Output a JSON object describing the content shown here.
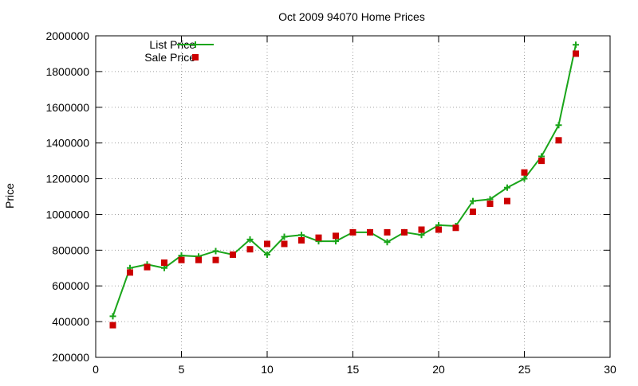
{
  "chart_data": {
    "type": "scatter",
    "title": "Oct 2009 94070 Home Prices",
    "xlabel": "",
    "ylabel": "Price",
    "xlim": [
      0,
      30
    ],
    "ylim": [
      200000,
      2000000
    ],
    "xticks": [
      0,
      5,
      10,
      15,
      20,
      25,
      30
    ],
    "yticks": [
      200000,
      400000,
      600000,
      800000,
      1000000,
      1200000,
      1400000,
      1600000,
      1800000,
      2000000
    ],
    "grid": true,
    "legend_position": "top-left",
    "series": [
      {
        "name": "List Price",
        "style": "linespoints",
        "marker": "plus",
        "color": "#1aa51a",
        "x": [
          1,
          2,
          3,
          4,
          5,
          6,
          7,
          8,
          9,
          10,
          11,
          12,
          13,
          14,
          15,
          16,
          17,
          18,
          19,
          20,
          21,
          22,
          23,
          24,
          25,
          26,
          27,
          28
        ],
        "y": [
          430000,
          700000,
          720000,
          700000,
          770000,
          765000,
          795000,
          775000,
          860000,
          775000,
          875000,
          885000,
          850000,
          850000,
          900000,
          900000,
          845000,
          900000,
          885000,
          940000,
          935000,
          1075000,
          1085000,
          1150000,
          1200000,
          1325000,
          1500000,
          1950000
        ]
      },
      {
        "name": "Sale Price",
        "style": "points",
        "marker": "square",
        "color": "#cc0000",
        "x": [
          1,
          2,
          3,
          4,
          5,
          6,
          7,
          8,
          9,
          10,
          11,
          12,
          13,
          14,
          15,
          16,
          17,
          18,
          19,
          20,
          21,
          22,
          23,
          24,
          25,
          26,
          27,
          28
        ],
        "y": [
          380000,
          675000,
          705000,
          730000,
          745000,
          745000,
          745000,
          775000,
          805000,
          835000,
          835000,
          855000,
          870000,
          880000,
          900000,
          900000,
          900000,
          900000,
          915000,
          915000,
          925000,
          1015000,
          1060000,
          1075000,
          1235000,
          1300000,
          1415000,
          1900000
        ]
      }
    ]
  }
}
